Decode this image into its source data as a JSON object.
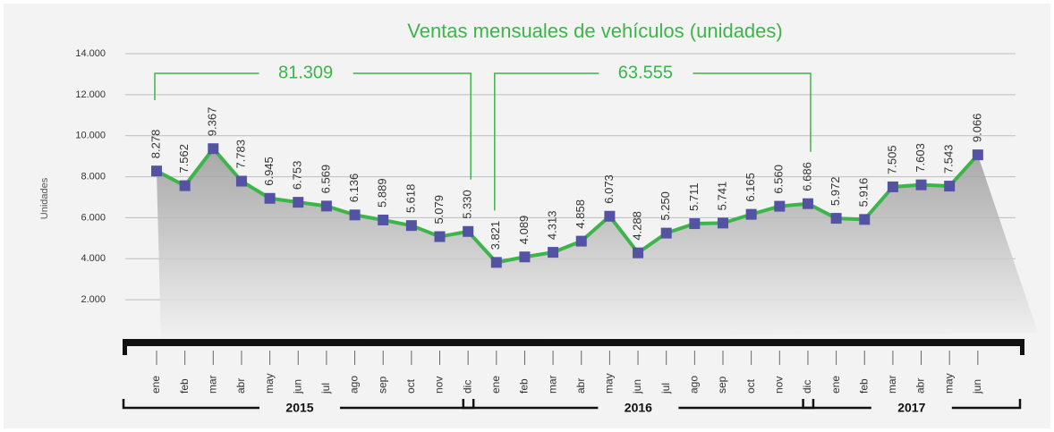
{
  "chart_data": {
    "type": "line",
    "title": "Ventas mensuales de vehículos  (unidades)",
    "y_axis_label": "Unidades",
    "year_groups": [
      {
        "label": "2015",
        "total": "81.309",
        "months": [
          "ene",
          "feb",
          "mar",
          "abr",
          "may",
          "jun",
          "jul",
          "ago",
          "sep",
          "oct",
          "nov",
          "dic"
        ]
      },
      {
        "label": "2016",
        "total": "63.555",
        "months": [
          "ene",
          "feb",
          "mar",
          "abr",
          "may",
          "jun",
          "jul",
          "ago",
          "sep",
          "oct",
          "nov",
          "dic"
        ]
      },
      {
        "label": "2017",
        "months": [
          "ene",
          "feb",
          "mar",
          "abr",
          "may",
          "jun"
        ]
      }
    ],
    "series": [
      {
        "name": "Ventas",
        "color": "#3db54a",
        "marker_color": "#5452a3",
        "values": [
          8278,
          7562,
          9367,
          7783,
          6945,
          6753,
          6569,
          6136,
          5889,
          5618,
          5079,
          5330,
          3821,
          4089,
          4313,
          4858,
          6073,
          4288,
          5250,
          5711,
          5741,
          6165,
          6560,
          6686,
          5972,
          5916,
          7505,
          7603,
          7543,
          9066
        ],
        "value_labels": [
          "8.278",
          "7.562",
          "9.367",
          "7.783",
          "6.945",
          "6.753",
          "6.569",
          "6.136",
          "5.889",
          "5.618",
          "5.079",
          "5.330",
          "3.821",
          "4.089",
          "4.313",
          "4.858",
          "6.073",
          "4.288",
          "5.250",
          "5.711",
          "5.741",
          "6.165",
          "6.560",
          "6.686",
          "5.972",
          "5.916",
          "7.505",
          "7.603",
          "7.543",
          "9.066"
        ]
      }
    ],
    "ylim": [
      0,
      14000
    ],
    "yticks": [
      {
        "value": 2000,
        "label": "2.000"
      },
      {
        "value": 4000,
        "label": "4.000"
      },
      {
        "value": 6000,
        "label": "6.000"
      },
      {
        "value": 8000,
        "label": "8.000"
      },
      {
        "value": 10000,
        "label": "10.000"
      },
      {
        "value": 12000,
        "label": "12.000"
      },
      {
        "value": 14000,
        "label": "14.000"
      }
    ],
    "grid": true
  }
}
